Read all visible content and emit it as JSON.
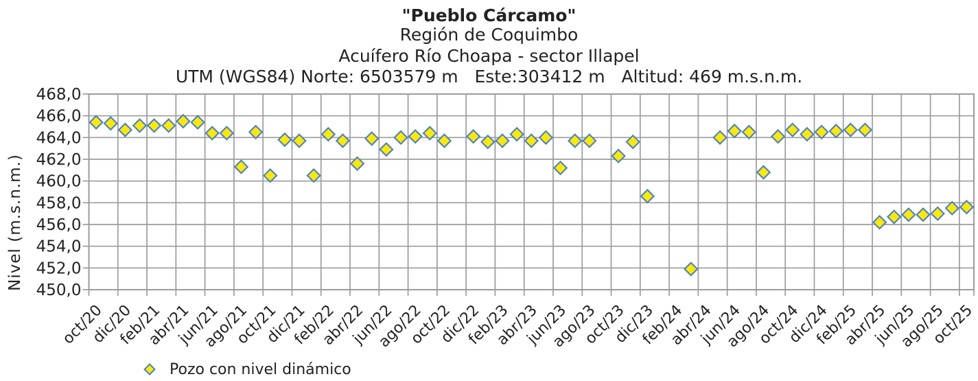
{
  "title": "\"Pueblo Cárcamo\"",
  "subtitle_region": "Región de Coquimbo",
  "subtitle_aquifer": "Acuífero Río Choapa - sector Illapel",
  "subtitle_utm": "UTM (WGS84) Norte: 6503579 m   Este:303412 m   Altitud: 469 m.s.n.m.",
  "legend": {
    "label": "Pozo con nivel dinámico",
    "marker": "diamond-icon"
  },
  "colors": {
    "marker_fill": "#f8e810",
    "marker_border": "#4f81bd",
    "grid": "#9c9c9c",
    "text": "#222222"
  },
  "chart_data": {
    "type": "scatter",
    "title": "\"Pueblo Cárcamo\"",
    "ylabel": "Nivel (m.s.n.m.)",
    "ylim": [
      450,
      468
    ],
    "ytick_step": 2,
    "ytick_labels": [
      "468,0",
      "466,0",
      "464,0",
      "462,0",
      "460,0",
      "458,0",
      "456,0",
      "454,0",
      "452,0",
      "450,0"
    ],
    "xtick_labels": [
      "oct/20",
      "dic/20",
      "feb/21",
      "abr/21",
      "jun/21",
      "ago/21",
      "oct/21",
      "dic/21",
      "feb/22",
      "abr/22",
      "jun/22",
      "ago/22",
      "oct/22",
      "dic/22",
      "feb/23",
      "abr/23",
      "jun/23",
      "ago/23",
      "oct/23",
      "dic/23",
      "feb/24",
      "abr/24",
      "jun/24",
      "ago/24",
      "oct/24",
      "dic/24",
      "feb/25",
      "abr/25",
      "jun/25",
      "ago/25",
      "oct/25"
    ],
    "x_unit": "months since oct/20 (one category per month, labels every 2 months)",
    "grid": true,
    "legend_position": "bottom-left",
    "points": [
      [
        0,
        465.4
      ],
      [
        1,
        465.3
      ],
      [
        2,
        464.7
      ],
      [
        3,
        465.1
      ],
      [
        4,
        465.1
      ],
      [
        5,
        465.1
      ],
      [
        6,
        465.5
      ],
      [
        7,
        465.4
      ],
      [
        8,
        464.4
      ],
      [
        9,
        464.4
      ],
      [
        10,
        461.3
      ],
      [
        11,
        464.5
      ],
      [
        12,
        460.5
      ],
      [
        13,
        463.8
      ],
      [
        14,
        463.7
      ],
      [
        15,
        460.5
      ],
      [
        16,
        464.3
      ],
      [
        17,
        463.7
      ],
      [
        18,
        461.6
      ],
      [
        19,
        463.9
      ],
      [
        20,
        462.9
      ],
      [
        21,
        464.0
      ],
      [
        22,
        464.1
      ],
      [
        23,
        464.4
      ],
      [
        24,
        463.7
      ],
      [
        26,
        464.1
      ],
      [
        27,
        463.6
      ],
      [
        28,
        463.7
      ],
      [
        29,
        464.3
      ],
      [
        30,
        463.7
      ],
      [
        31,
        464.0
      ],
      [
        32,
        461.2
      ],
      [
        33,
        463.7
      ],
      [
        34,
        463.7
      ],
      [
        36,
        462.3
      ],
      [
        37,
        463.6
      ],
      [
        38,
        458.6
      ],
      [
        41,
        451.9
      ],
      [
        43,
        464.0
      ],
      [
        44,
        464.6
      ],
      [
        45,
        464.5
      ],
      [
        46,
        460.8
      ],
      [
        47,
        464.1
      ],
      [
        48,
        464.7
      ],
      [
        49,
        464.3
      ],
      [
        50,
        464.5
      ],
      [
        51,
        464.6
      ],
      [
        52,
        464.7
      ],
      [
        53,
        464.7
      ],
      [
        54,
        456.2
      ],
      [
        55,
        456.7
      ],
      [
        56,
        456.9
      ],
      [
        57,
        456.9
      ],
      [
        58,
        457.0
      ],
      [
        59,
        457.5
      ],
      [
        60,
        457.6
      ]
    ]
  }
}
